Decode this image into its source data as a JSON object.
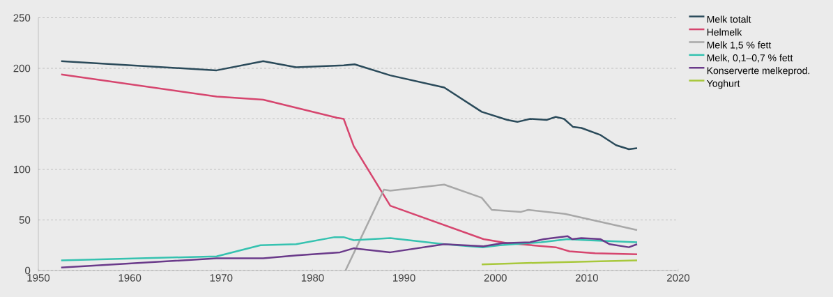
{
  "chart_data": {
    "type": "line",
    "xlim": [
      1950,
      2020
    ],
    "xticks": [
      1950,
      1960,
      1970,
      1980,
      1990,
      2000,
      2010,
      2020
    ],
    "ylim": [
      0,
      250
    ],
    "yticks": [
      0,
      50,
      100,
      150,
      200,
      250
    ],
    "grid": "y",
    "legend": "right",
    "line_style": "solid",
    "series": [
      {
        "name": "Melk totalt",
        "color": "#2a4a5a",
        "x": [
          1952.5,
          1969.5,
          1974.6,
          1978.2,
          1983.4,
          1984.6,
          1988.5,
          1994.4,
          1998.5,
          2001.3,
          2002.4,
          2003.8,
          2005.6,
          2006.6,
          2007.5,
          2008.5,
          2009.4,
          2011.5,
          2013.2,
          2014.6,
          2015.5
        ],
        "values": [
          207,
          198,
          207,
          201,
          203,
          204,
          193,
          181,
          157,
          149,
          147,
          150,
          149,
          152,
          150,
          142,
          141,
          134,
          124,
          120,
          121
        ]
      },
      {
        "name": "Helmelk",
        "color": "#d6456e",
        "x": [
          1952.5,
          1969.5,
          1974.6,
          1982.7,
          1983.4,
          1984.5,
          1988.5,
          1998.7,
          2001.3,
          2006.6,
          2008.1,
          2010.9,
          2015.5
        ],
        "values": [
          194,
          172,
          169,
          151,
          150,
          123,
          64,
          31,
          27,
          23,
          19,
          17,
          16
        ]
      },
      {
        "name": "Melk 1,5 % fett",
        "color": "#a8a8a8",
        "x": [
          1983.6,
          1987.8,
          1988.5,
          1994.4,
          1998.5,
          1999.6,
          2002.8,
          2003.6,
          2007.6,
          2015.5
        ],
        "values": [
          0,
          80,
          79,
          85,
          72,
          60,
          58,
          60,
          56,
          40
        ]
      },
      {
        "name": "Melk, 0,1–0,7 % fett",
        "color": "#35c2b0",
        "x": [
          1952.5,
          1969.5,
          1974.3,
          1978.2,
          1982.4,
          1983.4,
          1984.5,
          1988.5,
          1994.4,
          1998.6,
          2000.5,
          2005,
          2007.9,
          2010,
          2015.5
        ],
        "values": [
          10,
          14,
          25,
          26,
          33,
          33,
          30,
          32,
          26,
          23,
          25,
          28,
          31,
          30,
          28
        ]
      },
      {
        "name": "Konserverte melkeprod.",
        "color": "#6a3a8a",
        "x": [
          1952.5,
          1969.5,
          1974.6,
          1978.3,
          1983,
          1984.5,
          1988.5,
          1994.4,
          1998.7,
          2000.8,
          2003.8,
          2005.3,
          2007.9,
          2008.4,
          2009.4,
          2011.5,
          2012.5,
          2014.6,
          2015.5
        ],
        "values": [
          3,
          12,
          12,
          15,
          18,
          22,
          18,
          26,
          24,
          27,
          28,
          31,
          34,
          31,
          32,
          31,
          26,
          23,
          26
        ]
      },
      {
        "name": "Yoghurt",
        "color": "#a8c83c",
        "x": [
          1998.5,
          2005.9,
          2015.5
        ],
        "values": [
          6,
          8,
          10
        ]
      }
    ]
  }
}
